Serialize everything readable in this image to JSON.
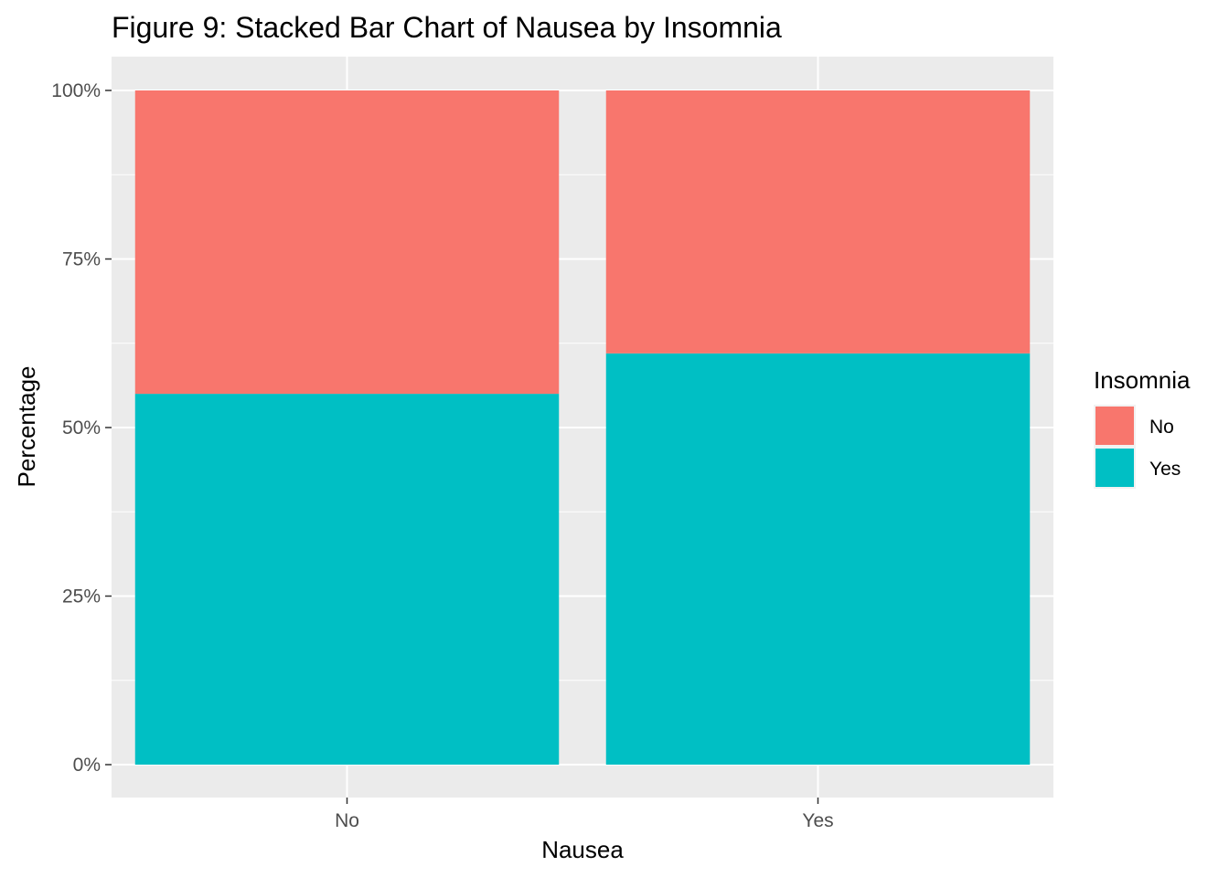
{
  "chart_data": {
    "type": "bar",
    "stacked": true,
    "title": "Figure 9: Stacked Bar Chart of Nausea by Insomnia",
    "xlabel": "Nausea",
    "ylabel": "Percentage",
    "categories": [
      "No",
      "Yes"
    ],
    "series": [
      {
        "name": "Yes",
        "values": [
          0.55,
          0.61
        ],
        "color": "#00BFC4"
      },
      {
        "name": "No",
        "values": [
          0.45,
          0.39
        ],
        "color": "#F8766D"
      }
    ],
    "ylim": [
      0,
      1
    ],
    "yticks": [
      0,
      0.25,
      0.5,
      0.75,
      1.0
    ],
    "ytick_labels": [
      "0%",
      "25%",
      "50%",
      "75%",
      "100%"
    ],
    "grid": true,
    "legend": {
      "title": "Insomnia",
      "position": "right",
      "entries": [
        {
          "label": "No",
          "color": "#F8766D"
        },
        {
          "label": "Yes",
          "color": "#00BFC4"
        }
      ]
    },
    "panel_background": "#EBEBEB"
  }
}
